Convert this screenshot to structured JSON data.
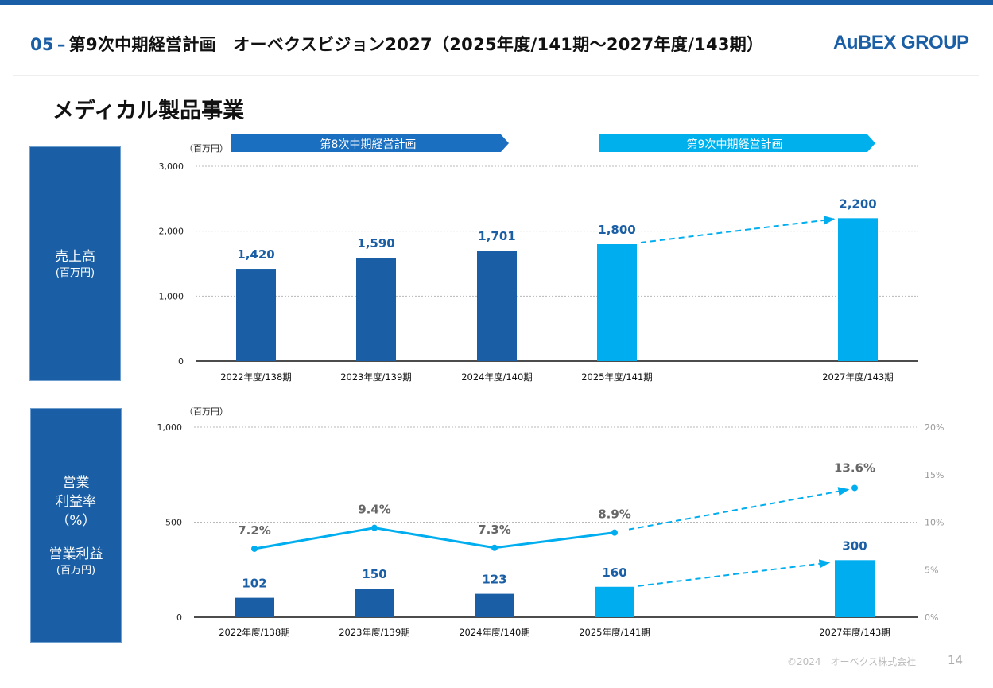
{
  "header": {
    "section_number": "05",
    "separator": "–",
    "title": "第9次中期経営計画　オーベクスビジョン2027（2025年度/141期〜2027年度/143期）",
    "logo_text": "AuBEX GROUP"
  },
  "page_title": "メディカル製品事業",
  "plan_banners": {
    "plan8": "第8次中期経営計画",
    "plan9": "第9次中期経営計画"
  },
  "side_labels": {
    "sales_title": "売上高",
    "sales_unit": "(百万円)",
    "op_rate_line1": "営業",
    "op_rate_line2": "利益率",
    "op_rate_unit": "（%）",
    "op_profit_title": "営業利益",
    "op_profit_unit": "(百万円)"
  },
  "colors": {
    "actual": "#1a5fa5",
    "plan": "#00aeef",
    "banner8": "#1a6fc0",
    "banner9": "#00b0ec"
  },
  "chart_data": [
    {
      "type": "bar",
      "title": "売上高",
      "unit_label": "（百万円）",
      "categories": [
        "2022年度/138期",
        "2023年度/139期",
        "2024年度/140期",
        "2025年度/141期",
        "2027年度/143期"
      ],
      "values": [
        1420,
        1590,
        1701,
        1800,
        2200
      ],
      "value_labels": [
        "1,420",
        "1,590",
        "1,701",
        "1,800",
        "2,200"
      ],
      "is_plan": [
        false,
        false,
        false,
        true,
        true
      ],
      "yticks": [
        0,
        1000,
        2000,
        3000
      ],
      "ytick_labels": [
        "0",
        "1,000",
        "2,000",
        "3,000"
      ],
      "ylim": [
        0,
        3000
      ],
      "trend_arrow": "2025年度/141期 → 2027年度/143期"
    },
    {
      "type": "bar+line",
      "title": "営業利益・営業利益率",
      "unit_label": "（百万円）",
      "categories": [
        "2022年度/138期",
        "2023年度/139期",
        "2024年度/140期",
        "2025年度/141期",
        "2027年度/143期"
      ],
      "series": [
        {
          "name": "営業利益",
          "axis": "left",
          "values": [
            102,
            150,
            123,
            160,
            300
          ],
          "value_labels": [
            "102",
            "150",
            "123",
            "160",
            "300"
          ]
        },
        {
          "name": "営業利益率",
          "axis": "right",
          "values": [
            7.2,
            9.4,
            7.3,
            8.9,
            13.6
          ],
          "value_labels": [
            "7.2%",
            "9.4%",
            "7.3%",
            "8.9%",
            "13.6%"
          ]
        }
      ],
      "is_plan": [
        false,
        false,
        false,
        true,
        true
      ],
      "left_yticks": [
        0,
        500,
        1000
      ],
      "left_ytick_labels": [
        "0",
        "500",
        "1,000"
      ],
      "left_ylim": [
        0,
        1000
      ],
      "right_yticks": [
        0,
        5,
        10,
        15,
        20
      ],
      "right_ytick_labels": [
        "0%",
        "5%",
        "10%",
        "15%",
        "20%"
      ],
      "right_ylim": [
        0,
        20
      ]
    }
  ],
  "footer": {
    "copyright": "©2024　オーベクス株式会社",
    "page_number": "14"
  }
}
